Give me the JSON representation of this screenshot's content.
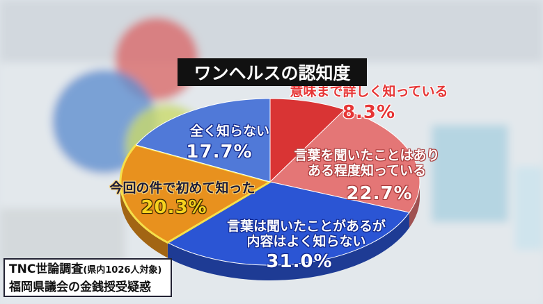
{
  "chart_data": {
    "type": "pie",
    "title": "ワンヘルスの認知度",
    "categories": [
      "意味まで詳しく知っている",
      "言葉を聞いたことはあり\nある程度知っている",
      "言葉は聞いたことがあるが\n内容はよく知らない",
      "今回の件で初めて知った",
      "全く知らない"
    ],
    "values": [
      8.3,
      22.7,
      31.0,
      20.3,
      17.7
    ],
    "value_labels": [
      "8.3%",
      "22.7%",
      "31.0%",
      "20.3%",
      "17.7%"
    ],
    "colors": [
      "#d93434",
      "#e47676",
      "#2b55d4",
      "#e8911e",
      "#5079d8"
    ],
    "highlight": 3,
    "source": "TNC世論調査",
    "source_note": "(県内1026人対象)",
    "topic": "福岡県議会の金銭授受疑惑"
  }
}
